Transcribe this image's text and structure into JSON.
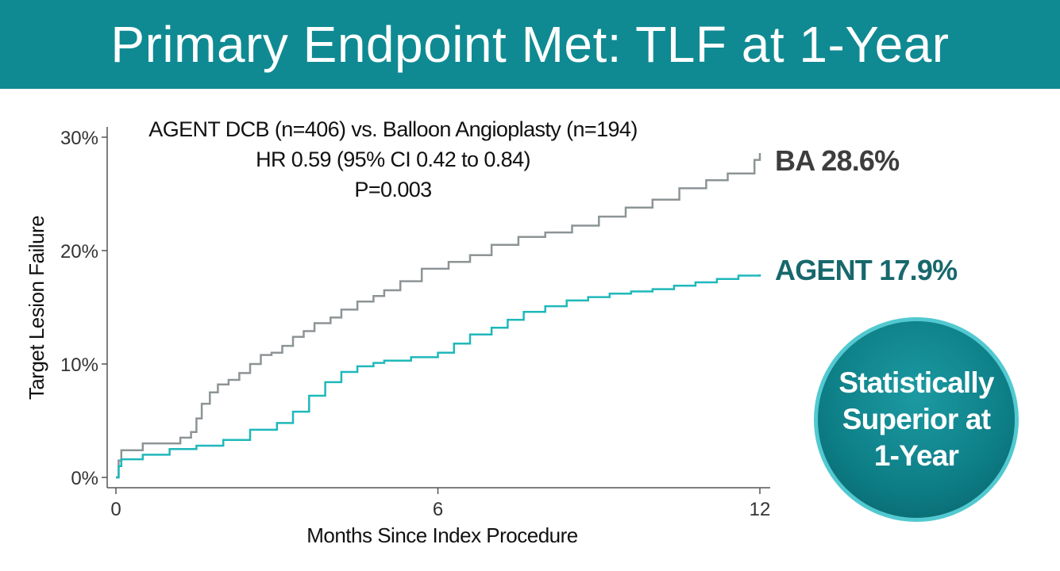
{
  "header": {
    "title": "Primary Endpoint Met: TLF at 1-Year"
  },
  "annotation": {
    "line1": "AGENT DCB (n=406) vs. Balloon Angioplasty (n=194)",
    "line2": "HR 0.59 (95% CI 0.42 to 0.84)",
    "line3": "P=0.003"
  },
  "end_labels": {
    "ba": "BA 28.6%",
    "agent": "AGENT 17.9%"
  },
  "badge": {
    "line1": "Statistically",
    "line2": "Superior at",
    "line3": "1-Year"
  },
  "colors": {
    "banner": "#0f8a92",
    "ba_series": "#8d9496",
    "agent_series": "#1fb8bb",
    "badge": "#0d7d85"
  },
  "chart_data": {
    "type": "line",
    "step": true,
    "xlabel": "Months Since Index Procedure",
    "ylabel": "Target Lesion Failure",
    "xlim": [
      0,
      12
    ],
    "ylim": [
      0,
      30
    ],
    "x_ticks": [
      0,
      6,
      12
    ],
    "x_tick_labels": [
      "0",
      "6",
      "12"
    ],
    "y_ticks": [
      0,
      10,
      20,
      30
    ],
    "y_tick_labels": [
      "0%",
      "10%",
      "20%",
      "30%"
    ],
    "grid": false,
    "series": [
      {
        "name": "BA",
        "x": [
          0,
          0.05,
          0.1,
          0.5,
          1.0,
          1.2,
          1.4,
          1.5,
          1.6,
          1.75,
          1.9,
          2.1,
          2.3,
          2.5,
          2.7,
          2.9,
          3.1,
          3.3,
          3.5,
          3.7,
          4.0,
          4.2,
          4.5,
          4.8,
          5.0,
          5.3,
          5.7,
          6.2,
          6.6,
          7.0,
          7.5,
          8.0,
          8.5,
          9.0,
          9.5,
          10.0,
          10.5,
          11.0,
          11.4,
          11.9,
          12.0
        ],
        "values": [
          0,
          1.5,
          2.4,
          3.0,
          3.0,
          3.5,
          4.0,
          5.2,
          6.5,
          7.5,
          8.2,
          8.6,
          9.2,
          10.0,
          10.8,
          11.0,
          11.6,
          12.4,
          12.9,
          13.6,
          14.1,
          14.8,
          15.5,
          16.0,
          16.5,
          17.3,
          18.4,
          19.0,
          19.6,
          20.5,
          21.2,
          21.6,
          22.2,
          23.0,
          23.8,
          24.5,
          25.5,
          26.2,
          26.8,
          28.0,
          28.6
        ]
      },
      {
        "name": "AGENT",
        "x": [
          0,
          0.05,
          0.1,
          0.5,
          1.0,
          1.5,
          2.0,
          2.5,
          3.0,
          3.3,
          3.6,
          3.9,
          4.2,
          4.5,
          4.8,
          5.0,
          5.5,
          6.0,
          6.3,
          6.6,
          7.0,
          7.3,
          7.6,
          8.0,
          8.4,
          8.8,
          9.2,
          9.6,
          10.0,
          10.4,
          10.8,
          11.2,
          11.6,
          12.0
        ],
        "values": [
          0,
          1.0,
          1.6,
          2.0,
          2.5,
          2.8,
          3.3,
          4.2,
          4.8,
          5.8,
          7.2,
          8.4,
          9.3,
          9.8,
          10.1,
          10.3,
          10.6,
          11.0,
          11.8,
          12.6,
          13.2,
          13.9,
          14.6,
          15.1,
          15.6,
          15.9,
          16.2,
          16.4,
          16.6,
          16.9,
          17.2,
          17.5,
          17.8,
          17.9
        ]
      }
    ]
  }
}
